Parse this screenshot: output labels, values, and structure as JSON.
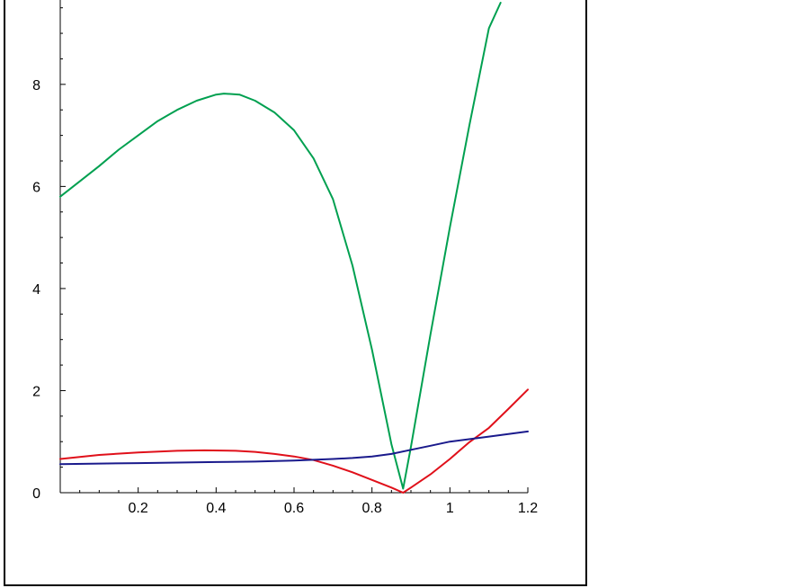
{
  "chart_data": {
    "type": "line",
    "title": "",
    "xlabel": "",
    "ylabel": "",
    "xlim": [
      0,
      1.2
    ],
    "ylim": [
      0,
      9.6
    ],
    "grid": false,
    "x_ticks": [
      0.2,
      0.4,
      0.6,
      0.8,
      1,
      1.2
    ],
    "x_tick_labels": [
      "0.2",
      "0.4",
      "0.6",
      "0.8",
      "1",
      "1.2"
    ],
    "y_ticks": [
      0,
      2,
      4,
      6,
      8
    ],
    "y_tick_labels": [
      "0",
      "2",
      "4",
      "6",
      "8"
    ],
    "series": [
      {
        "color": "#00a050",
        "x": [
          0,
          0.05,
          0.1,
          0.15,
          0.2,
          0.25,
          0.3,
          0.35,
          0.4,
          0.42,
          0.46,
          0.5,
          0.55,
          0.6,
          0.65,
          0.7,
          0.75,
          0.8,
          0.85,
          0.88,
          0.9,
          0.95,
          1.0,
          1.05,
          1.1,
          1.13
        ],
        "y": [
          5.8,
          6.1,
          6.4,
          6.72,
          7.0,
          7.28,
          7.5,
          7.68,
          7.8,
          7.82,
          7.8,
          7.68,
          7.45,
          7.1,
          6.55,
          5.75,
          4.45,
          2.8,
          0.95,
          0.08,
          0.9,
          3.1,
          5.2,
          7.2,
          9.1,
          9.6
        ]
      },
      {
        "color": "#e0101a",
        "x": [
          0,
          0.1,
          0.2,
          0.3,
          0.37,
          0.45,
          0.5,
          0.55,
          0.6,
          0.65,
          0.7,
          0.75,
          0.8,
          0.85,
          0.88,
          0.9,
          0.95,
          1.0,
          1.05,
          1.1,
          1.15,
          1.2
        ],
        "y": [
          0.66,
          0.74,
          0.79,
          0.82,
          0.83,
          0.82,
          0.8,
          0.76,
          0.71,
          0.64,
          0.53,
          0.4,
          0.25,
          0.1,
          0.0,
          0.1,
          0.36,
          0.66,
          0.99,
          1.27,
          1.64,
          2.02
        ]
      },
      {
        "color": "#1a1a8c",
        "x": [
          0,
          0.1,
          0.2,
          0.3,
          0.4,
          0.5,
          0.6,
          0.7,
          0.75,
          0.8,
          0.85,
          0.9,
          0.95,
          1.0,
          1.1,
          1.2
        ],
        "y": [
          0.56,
          0.57,
          0.58,
          0.59,
          0.6,
          0.61,
          0.63,
          0.66,
          0.68,
          0.71,
          0.76,
          0.84,
          0.92,
          1.0,
          1.1,
          1.2
        ]
      }
    ]
  }
}
